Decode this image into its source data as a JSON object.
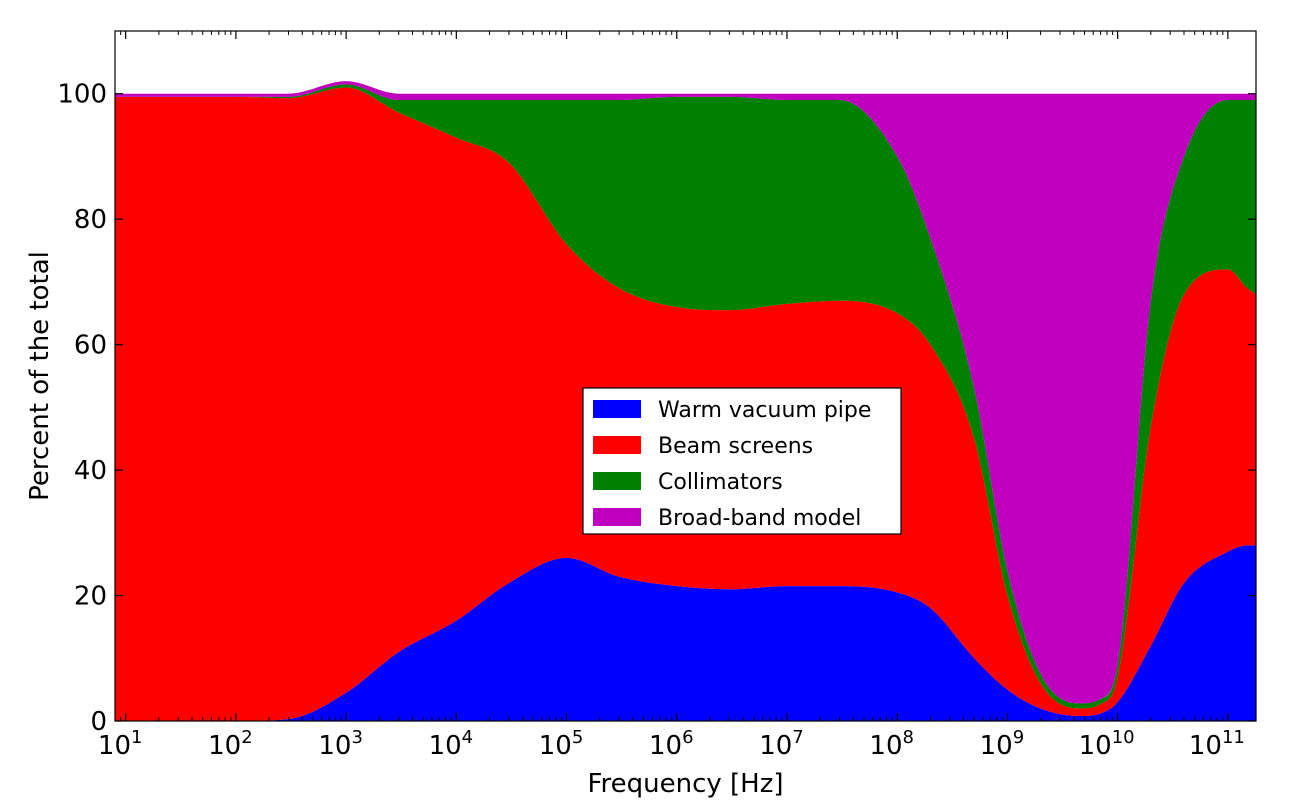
{
  "chart_data": {
    "type": "area",
    "stacked": true,
    "xscale": "log",
    "xlabel": "Frequency [Hz]",
    "ylabel": "Percent of the total",
    "xlim": [
      8,
      180000000000
    ],
    "ylim": [
      0,
      110
    ],
    "grid": false,
    "legend_position": "center",
    "x_ticks": [
      {
        "value": 10,
        "base": "10",
        "exp": "1"
      },
      {
        "value": 100,
        "base": "10",
        "exp": "2"
      },
      {
        "value": 1000,
        "base": "10",
        "exp": "3"
      },
      {
        "value": 10000,
        "base": "10",
        "exp": "4"
      },
      {
        "value": 100000,
        "base": "10",
        "exp": "5"
      },
      {
        "value": 1000000,
        "base": "10",
        "exp": "6"
      },
      {
        "value": 10000000,
        "base": "10",
        "exp": "7"
      },
      {
        "value": 100000000,
        "base": "10",
        "exp": "8"
      },
      {
        "value": 1000000000,
        "base": "10",
        "exp": "9"
      },
      {
        "value": 10000000000,
        "base": "10",
        "exp": "10"
      },
      {
        "value": 100000000000,
        "base": "10",
        "exp": "11"
      }
    ],
    "y_ticks": [
      "0",
      "20",
      "40",
      "60",
      "80",
      "100"
    ],
    "x": [
      8,
      10,
      30,
      100,
      300,
      1000,
      3000,
      10000,
      30000,
      100000,
      300000,
      1000000,
      3000000,
      10000000,
      30000000,
      100000000,
      200000000,
      500000000,
      1000000000,
      2000000000,
      4500000000,
      7000000000,
      10000000000,
      20000000000,
      40000000000,
      100000000000,
      150000000000,
      180000000000
    ],
    "series": [
      {
        "name": "Warm vacuum pipe",
        "color": "#0000ff",
        "values": [
          0,
          0,
          0,
          0,
          0.3,
          4.5,
          11,
          16,
          22,
          26,
          23,
          21.5,
          21,
          21.5,
          21.5,
          20.5,
          18,
          10,
          5,
          2,
          0.8,
          1.2,
          3,
          12,
          22,
          27,
          28,
          28
        ]
      },
      {
        "name": "Beam screens",
        "color": "#ff0000",
        "values": [
          99.5,
          99.5,
          99.5,
          99.5,
          99,
          96.5,
          86,
          77,
          67,
          50,
          46,
          44.5,
          44.5,
          45,
          45.5,
          44.5,
          42,
          35,
          15,
          4,
          1.2,
          1.5,
          4,
          35,
          46,
          45,
          41,
          40
        ]
      },
      {
        "name": "Collimators",
        "color": "#008000",
        "values": [
          0,
          0,
          0,
          0,
          0.2,
          0.5,
          2,
          6,
          10,
          23,
          30,
          33.5,
          34,
          32.5,
          32,
          25,
          17,
          8,
          4,
          1.5,
          0.8,
          0.8,
          2,
          20,
          22,
          27,
          30,
          31
        ]
      },
      {
        "name": "Broad-band model",
        "color": "#bf00bf",
        "values": [
          0.5,
          0.5,
          0.5,
          0.5,
          0.5,
          0.5,
          1,
          1,
          1,
          1,
          1,
          0.5,
          0.5,
          1,
          1,
          10,
          23,
          47,
          76,
          92.5,
          97.2,
          96.5,
          91,
          33,
          10,
          1,
          1,
          1
        ]
      }
    ]
  }
}
